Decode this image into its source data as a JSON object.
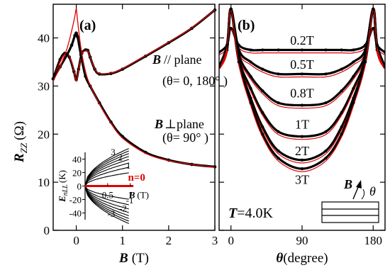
{
  "chart_data": [
    {
      "type": "line",
      "panel_label": "(a)",
      "xlabel_symbol": "B",
      "xlabel_unit": "(T)",
      "ylabel_symbol": "R",
      "ylabel_sub": "ZZ",
      "ylabel_unit": "(Ω)",
      "xlim": [
        -0.5,
        3
      ],
      "ylim": [
        0,
        47
      ],
      "xticks": [
        0,
        1,
        2,
        3
      ],
      "yticks": [
        0,
        10,
        20,
        30,
        40
      ],
      "annotations": {
        "parallel_symbol": "B",
        "parallel_text": "// plane",
        "parallel_angle": "(θ= 0, 180°  )",
        "perp_symbol": "B",
        "perp_text": "⊥plane",
        "perp_angle": "(θ= 90°  )"
      },
      "series": [
        {
          "key": "parallel_data",
          "x": [
            -0.5,
            -0.35,
            -0.25,
            -0.15,
            -0.05,
            0.0,
            0.05,
            0.12,
            0.2,
            0.25,
            0.3,
            0.4,
            0.5,
            0.75,
            1.0,
            1.5,
            2.0,
            2.5,
            3.0
          ],
          "y": [
            31.5,
            35.5,
            36.8,
            36.0,
            33.0,
            31.3,
            33.5,
            36.8,
            37.5,
            37.4,
            36.0,
            33.5,
            32.5,
            32.6,
            33.5,
            36.2,
            39.0,
            42.0,
            45.8
          ]
        },
        {
          "key": "parallel_fit",
          "x": [
            -0.5,
            -0.35,
            -0.25,
            -0.15,
            -0.05,
            0.0,
            0.05,
            0.12,
            0.2,
            0.25,
            0.3,
            0.4,
            0.5,
            0.75,
            1.0,
            1.5,
            2.0,
            2.5,
            3.0
          ],
          "y": [
            31.5,
            35.0,
            36.6,
            36.2,
            33.2,
            31.0,
            33.2,
            36.6,
            37.3,
            37.2,
            36.0,
            33.6,
            32.6,
            32.7,
            33.6,
            36.3,
            39.1,
            42.1,
            45.8
          ]
        },
        {
          "key": "perp_data",
          "x": [
            -0.5,
            -0.35,
            -0.2,
            -0.1,
            -0.03,
            0.0,
            0.03,
            0.1,
            0.2,
            0.3,
            0.5,
            0.75,
            1.0,
            1.5,
            2.0,
            2.5,
            3.0
          ],
          "y": [
            31.5,
            34.0,
            36.5,
            38.5,
            40.5,
            41.0,
            40.2,
            36.5,
            32.0,
            30.0,
            26.5,
            22.5,
            19.5,
            16.2,
            14.6,
            13.7,
            13.2
          ]
        },
        {
          "key": "perp_fit",
          "x": [
            -0.5,
            -0.35,
            -0.2,
            -0.1,
            -0.03,
            0.0,
            0.03,
            0.1,
            0.2,
            0.3,
            0.5,
            0.75,
            1.0,
            1.5,
            2.0,
            2.5,
            3.0
          ],
          "y": [
            31.0,
            34.0,
            37.8,
            41.5,
            44.5,
            46.0,
            43.5,
            38.0,
            33.0,
            30.2,
            26.3,
            22.3,
            19.2,
            16.0,
            14.5,
            13.7,
            13.1
          ]
        }
      ],
      "inset": {
        "ylabel": "E",
        "ylabel_sub": "nLL",
        "ylabel_unit": "(K)",
        "xlabel_symbol": "B",
        "xlabel_unit": "(T)",
        "xlim": [
          0,
          1.1
        ],
        "ylim": [
          -50,
          50
        ],
        "xtick_labels": [
          "0.5",
          "1"
        ],
        "ytick_labels": [
          "40",
          "20",
          "0",
          "-20",
          "-40"
        ],
        "n0_label": "n=0",
        "level_labels_pos": [
          "3",
          "2",
          "1"
        ],
        "level_labels_neg": [
          "-1",
          "-2",
          "-3"
        ],
        "levels": [
          1,
          2,
          3,
          4,
          5,
          6,
          7,
          8
        ]
      }
    },
    {
      "type": "line",
      "panel_label": "(b)",
      "xlabel_symbol": "θ",
      "xlabel_unit": "(degree)",
      "xlim": [
        -15,
        195
      ],
      "ylim": [
        0,
        47
      ],
      "xticks": [
        0,
        90,
        180
      ],
      "temperature_symbol": "T",
      "temperature_text": "=4.0K",
      "schematic_b": "B",
      "schematic_theta": "θ",
      "series_labels": [
        "0.2T",
        "0.5T",
        "0.8T",
        "1T",
        "2T",
        "3T"
      ],
      "series": [
        {
          "name": "0.2T",
          "x": [
            -15,
            -5,
            0,
            10,
            25,
            40,
            60,
            90,
            120,
            140,
            155,
            170,
            180,
            185,
            195
          ],
          "y": [
            37,
            38.5,
            42,
            38.5,
            37.5,
            37.5,
            37.5,
            37.5,
            37.5,
            37.5,
            37.5,
            38.5,
            42,
            38.5,
            37
          ]
        },
        {
          "name": "0.5T",
          "x": [
            -15,
            -5,
            0,
            10,
            25,
            40,
            60,
            90,
            120,
            140,
            155,
            170,
            180,
            185,
            195
          ],
          "y": [
            34,
            37.5,
            46,
            37.5,
            35,
            33.5,
            32.5,
            32.5,
            32.5,
            33.5,
            35,
            37.5,
            46,
            37.5,
            34
          ]
        },
        {
          "name": "0.8T",
          "x": [
            -15,
            -5,
            0,
            10,
            25,
            40,
            60,
            90,
            120,
            140,
            155,
            170,
            180,
            185,
            195
          ],
          "y": [
            34,
            38,
            46,
            36.5,
            32,
            29,
            26.5,
            26,
            26.5,
            29,
            32,
            36.5,
            46,
            38,
            34
          ]
        },
        {
          "name": "1T",
          "x": [
            -15,
            -5,
            0,
            10,
            25,
            40,
            60,
            90,
            120,
            140,
            155,
            170,
            180,
            185,
            195
          ],
          "y": [
            34,
            37.5,
            46,
            35.5,
            29.5,
            24.5,
            20.5,
            19.5,
            20.5,
            24.5,
            29.5,
            35.5,
            46,
            37.5,
            34
          ]
        },
        {
          "name": "2T",
          "x": [
            -15,
            -5,
            0,
            10,
            25,
            40,
            60,
            90,
            120,
            140,
            155,
            170,
            180,
            185,
            195
          ],
          "y": [
            34,
            38,
            46,
            35,
            27.5,
            21.5,
            16.5,
            14.6,
            16.5,
            21.5,
            27.5,
            35,
            46,
            38,
            34
          ]
        },
        {
          "name": "3T",
          "x": [
            -15,
            -5,
            0,
            10,
            25,
            40,
            60,
            90,
            120,
            140,
            155,
            170,
            180,
            185,
            195
          ],
          "y": [
            34,
            38.5,
            46,
            35,
            26.5,
            20,
            15,
            12.8,
            15,
            20,
            26.5,
            35,
            46,
            38.5,
            34
          ]
        }
      ]
    }
  ],
  "colors": {
    "data": "#000000",
    "fit": "#e00000",
    "axis": "#000000"
  }
}
